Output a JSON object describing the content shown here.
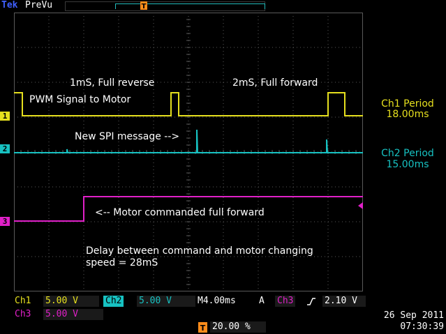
{
  "header": {
    "brand": "Tek",
    "mode": "PreVu",
    "trigger_marker_icon": "trigger-T-icon"
  },
  "colors": {
    "ch1": "#e6e01e",
    "ch2": "#17c2c2",
    "ch3": "#e020c8",
    "trigger": "#ff8c1a",
    "grid": "#5a5a5a"
  },
  "channels": [
    {
      "id": "1",
      "color": "#e6e01e"
    },
    {
      "id": "2",
      "color": "#17c2c2"
    },
    {
      "id": "3",
      "color": "#e020c8"
    }
  ],
  "annotations": {
    "ch1_signal": "PWM Signal to Motor",
    "reverse": "1mS, Full reverse",
    "forward": "2mS, Full forward",
    "spi": "New SPI message -->",
    "motor_cmd": "<-- Motor commanded full forward",
    "delay_line1": "Delay between command and motor changing",
    "delay_line2": "speed = 28mS"
  },
  "measurements": {
    "ch1_label": "Ch1 Period",
    "ch1_value": "18.00ms",
    "ch2_label": "Ch2 Period",
    "ch2_value": "15.00ms"
  },
  "status": {
    "ch1_name": "Ch1",
    "ch1_scale": "5.00 V",
    "ch2_name": "Ch2",
    "ch2_scale": "5.00 V",
    "timebase": "M4.00ms",
    "trigger_mode": "A",
    "trigger_source": "Ch3",
    "trigger_slope_icon": "rising-edge-icon",
    "trigger_level": "2.10 V",
    "ch3_name": "Ch3",
    "ch3_scale": "5.00 V",
    "trigger_position": "20.00 %",
    "date": "26 Sep  2011",
    "time": "07:30:39"
  }
}
